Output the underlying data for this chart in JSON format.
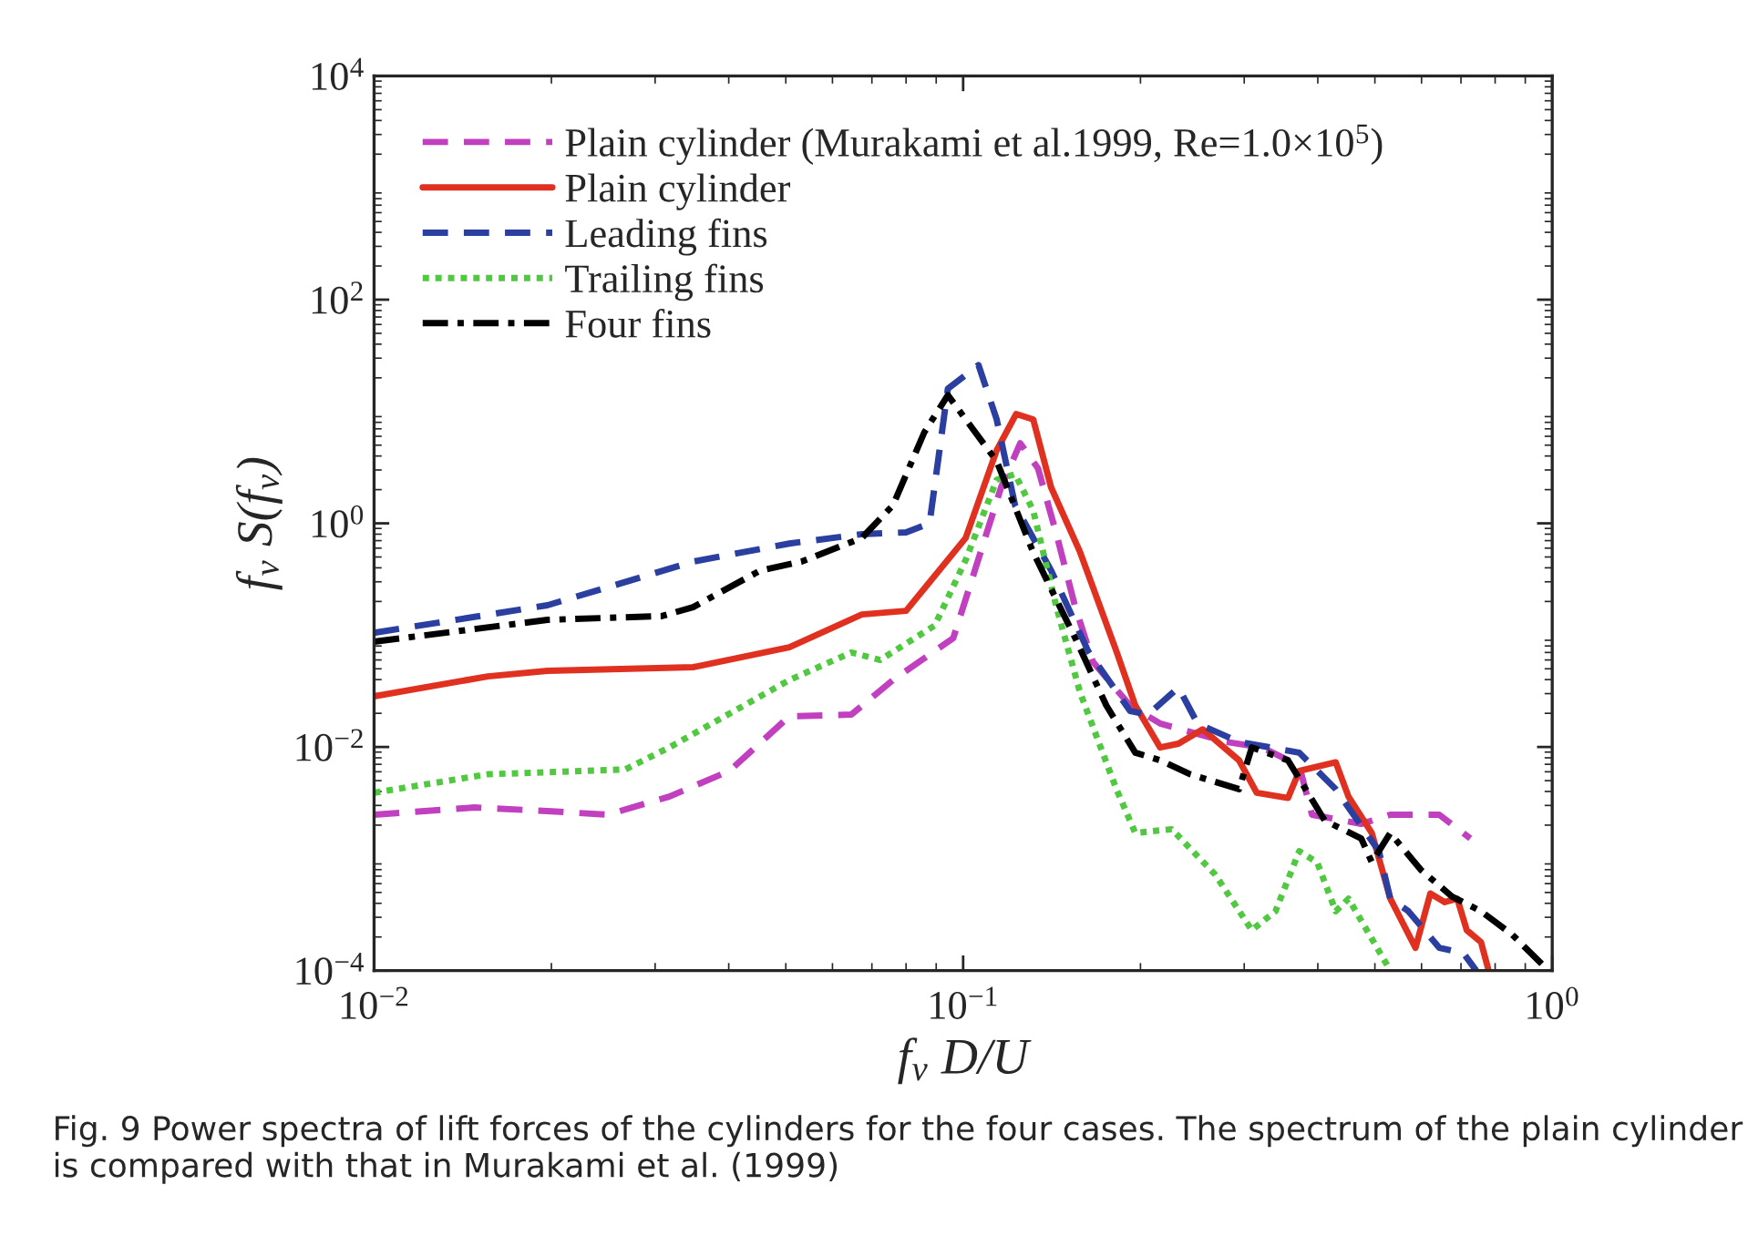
{
  "chart_data": {
    "type": "line",
    "xlabel": "f$_{v}$ D/U",
    "ylabel": "f$_{v}$ S(f$_{v}$)",
    "log": "xy",
    "xlim": [
      0.01,
      1
    ],
    "ylim": [
      0.0001,
      10000
    ],
    "xticks": [
      {
        "value": 0.01,
        "label": "10$^{−2}$"
      },
      {
        "value": 0.1,
        "label": "10$^{−1}$"
      },
      {
        "value": 1,
        "label": "10$^{0}$"
      }
    ],
    "yticks": [
      {
        "value": 0.0001,
        "label": "10$^{−4}$"
      },
      {
        "value": 0.01,
        "label": "10$^{−2}$"
      },
      {
        "value": 1,
        "label": "10$^{0}$"
      },
      {
        "value": 100,
        "label": "10$^{2}$"
      },
      {
        "value": 10000,
        "label": "10$^{4}$"
      }
    ],
    "grid": false,
    "legend": "top left",
    "annotations": [
      "Fig. 9 Power spectra of lift forces of the cylinders for the four cases. The spectrum of the plain cylinder is compared with that in Murakami et al. (1999)"
    ],
    "series": [
      {
        "name": "Plain cylinder (Murakami et al.1999, Re=1.0×10$^{5}$)",
        "color": "#c040c0",
        "line_style": "dashed",
        "x": [
          0.01,
          0.0148,
          0.0197,
          0.0249,
          0.0317,
          0.0401,
          0.0507,
          0.0646,
          0.076,
          0.0962,
          0.103,
          0.116,
          0.125,
          0.134,
          0.144,
          0.155,
          0.166,
          0.192,
          0.216,
          0.28,
          0.322,
          0.372,
          0.391,
          0.474,
          0.531,
          0.643,
          0.726
        ],
        "values": [
          0.00248,
          0.00288,
          0.00267,
          0.00248,
          0.0036,
          0.0061,
          0.0188,
          0.0195,
          0.0397,
          0.094,
          0.29,
          2.1,
          5.2,
          3.1,
          0.8,
          0.178,
          0.058,
          0.0235,
          0.0162,
          0.0111,
          0.0099,
          0.0068,
          0.00248,
          0.00205,
          0.00248,
          0.00248,
          0.00152
        ]
      },
      {
        "name": "Plain cylinder",
        "color": "#e03020",
        "line_style": "solid",
        "x": [
          0.01,
          0.0156,
          0.0197,
          0.0348,
          0.0507,
          0.0673,
          0.08,
          0.101,
          0.114,
          0.123,
          0.1315,
          0.141,
          0.158,
          0.182,
          0.196,
          0.216,
          0.232,
          0.255,
          0.294,
          0.315,
          0.356,
          0.372,
          0.429,
          0.451,
          0.494,
          0.531,
          0.586,
          0.621,
          0.657,
          0.69,
          0.716,
          0.757,
          0.78
        ],
        "values": [
          0.0284,
          0.0428,
          0.048,
          0.0517,
          0.078,
          0.153,
          0.165,
          0.74,
          4.5,
          9.5,
          8.5,
          2.1,
          0.55,
          0.072,
          0.0235,
          0.0099,
          0.0107,
          0.0144,
          0.0076,
          0.0039,
          0.0035,
          0.0061,
          0.0073,
          0.0036,
          0.0017,
          0.00044,
          0.00016,
          0.00049,
          0.00041,
          0.00044,
          0.00023,
          0.00018,
          0.0001
        ]
      },
      {
        "name": "Leading fins",
        "color": "#2a3fa0",
        "line_style": "dashed",
        "x": [
          0.01,
          0.0197,
          0.0348,
          0.0507,
          0.0673,
          0.08,
          0.0877,
          0.0942,
          0.1062,
          0.114,
          0.1225,
          0.141,
          0.163,
          0.192,
          0.206,
          0.232,
          0.25,
          0.294,
          0.372,
          0.429,
          0.508,
          0.531,
          0.57,
          0.643,
          0.707,
          0.743
        ],
        "values": [
          0.105,
          0.185,
          0.455,
          0.66,
          0.8,
          0.83,
          1.0,
          16,
          26,
          8.5,
          1.45,
          0.38,
          0.072,
          0.021,
          0.0195,
          0.034,
          0.0162,
          0.0111,
          0.0089,
          0.0042,
          0.00117,
          0.00044,
          0.00034,
          0.00016,
          0.000143,
          0.0001
        ]
      },
      {
        "name": "Trailing fins",
        "color": "#50c840",
        "line_style": "dotted",
        "x": [
          0.01,
          0.0156,
          0.0267,
          0.0317,
          0.0507,
          0.0646,
          0.0723,
          0.0895,
          0.101,
          0.114,
          0.1225,
          0.1315,
          0.144,
          0.158,
          0.182,
          0.196,
          0.226,
          0.268,
          0.309,
          0.339,
          0.372,
          0.399,
          0.429,
          0.451,
          0.531
        ],
        "values": [
          0.0039,
          0.0057,
          0.0063,
          0.0099,
          0.0397,
          0.07,
          0.06,
          0.122,
          0.47,
          2.45,
          2.75,
          1.3,
          0.178,
          0.0305,
          0.0042,
          0.0017,
          0.00184,
          0.00072,
          0.00023,
          0.00034,
          0.00117,
          0.00093,
          0.00034,
          0.00044,
          0.0001
        ]
      },
      {
        "name": "Four fins",
        "color": "#000000",
        "line_style": "dashdot",
        "x": [
          0.01,
          0.0197,
          0.0308,
          0.0348,
          0.0452,
          0.0532,
          0.0673,
          0.076,
          0.0859,
          0.0942,
          0.101,
          0.114,
          0.1315,
          0.155,
          0.175,
          0.196,
          0.216,
          0.243,
          0.294,
          0.309,
          0.356,
          0.411,
          0.474,
          0.494,
          0.531,
          0.598,
          0.676,
          0.757,
          0.855,
          0.986
        ],
        "values": [
          0.0874,
          0.137,
          0.148,
          0.178,
          0.377,
          0.455,
          0.74,
          1.45,
          6.5,
          14,
          8.5,
          3.6,
          0.55,
          0.094,
          0.0235,
          0.0089,
          0.0076,
          0.0057,
          0.0042,
          0.0099,
          0.0076,
          0.0022,
          0.00152,
          0.00093,
          0.0017,
          0.0008,
          0.00046,
          0.00034,
          0.00021,
          0.0001
        ]
      }
    ]
  }
}
